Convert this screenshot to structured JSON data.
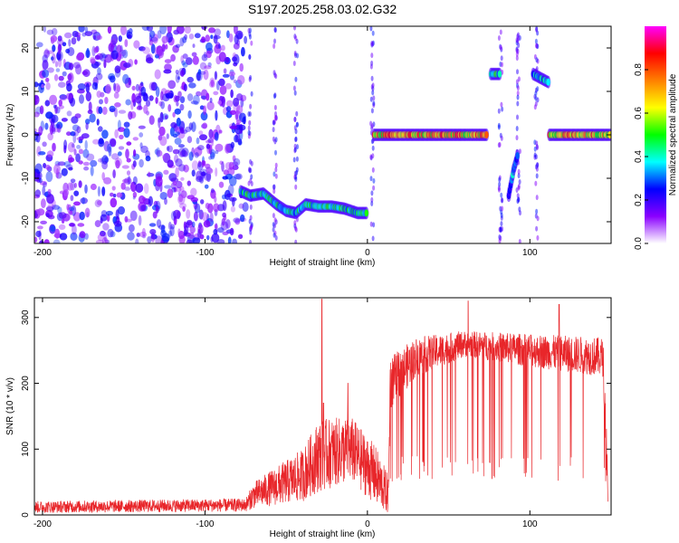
{
  "title": "S197.2025.258.03.02.G32",
  "chart_data": [
    {
      "type": "heatmap",
      "xlabel": "Height of straight line (km)",
      "ylabel": "Frequency (Hz)",
      "xlim": [
        -205,
        150
      ],
      "ylim": [
        -25,
        25
      ],
      "xticks": [
        -200,
        -100,
        0,
        100
      ],
      "yticks": [
        -20,
        -10,
        0,
        10,
        20
      ],
      "colorbar": {
        "label": "Normalized spectral amplitude",
        "range": [
          0,
          1
        ],
        "ticks": [
          "0.0",
          "0.2",
          "0.4",
          "0.6",
          "0.8"
        ],
        "colors": [
          "#ffffff",
          "#8a00ff",
          "#0000ff",
          "#00ffff",
          "#00ff00",
          "#ffff00",
          "#ff8000",
          "#ff0000",
          "#ff00ff"
        ]
      },
      "noise_region": {
        "x": [
          -205,
          -75
        ],
        "y": [
          -25,
          25
        ],
        "level": 0.2
      },
      "tracks": [
        {
          "x": [
            -78,
            -72,
            -64,
            -56,
            -50,
            -44,
            -38,
            -30,
            -22,
            -14,
            -6,
            0
          ],
          "y": [
            -13,
            -14,
            -13.5,
            -16,
            -17.5,
            -18,
            -16,
            -16.5,
            -16.5,
            -17,
            -18,
            -18
          ],
          "amplitude": 0.5
        },
        {
          "x": [
            4,
            20,
            40,
            60,
            74
          ],
          "y": [
            0,
            0,
            0,
            0,
            0
          ],
          "amplitude": 0.85
        },
        {
          "x": [
            76,
            82
          ],
          "y": [
            14,
            14
          ],
          "amplitude": 0.5
        },
        {
          "x": [
            102,
            112
          ],
          "y": [
            14,
            12
          ],
          "amplitude": 0.45
        },
        {
          "x": [
            112,
            125,
            140,
            150
          ],
          "y": [
            0,
            0,
            0,
            0
          ],
          "amplitude": 0.85
        },
        {
          "x": [
            87,
            90,
            93
          ],
          "y": [
            -14,
            -8,
            -4
          ],
          "amplitude": 0.4
        }
      ]
    },
    {
      "type": "line",
      "xlabel": "Height of straight line (km)",
      "ylabel": "SNR (10 * v/v)",
      "xlim": [
        -205,
        150
      ],
      "ylim": [
        0,
        330
      ],
      "xticks": [
        -200,
        -100,
        0,
        100
      ],
      "yticks": [
        0,
        100,
        200,
        300
      ],
      "series": [
        {
          "color": "#e8262a",
          "envelope": [
            {
              "x": -205,
              "base": 12,
              "spread": 18
            },
            {
              "x": -75,
              "base": 15,
              "spread": 20
            },
            {
              "x": -70,
              "base": 30,
              "spread": 40
            },
            {
              "x": -40,
              "base": 60,
              "spread": 80
            },
            {
              "x": -30,
              "base": 90,
              "spread": 110
            },
            {
              "x": -10,
              "base": 100,
              "spread": 100
            },
            {
              "x": 5,
              "base": 60,
              "spread": 90
            },
            {
              "x": 13,
              "base": 30,
              "spread": 60
            },
            {
              "x": 14,
              "base": 200,
              "spread": 80
            },
            {
              "x": 30,
              "base": 240,
              "spread": 60
            },
            {
              "x": 60,
              "base": 260,
              "spread": 40
            },
            {
              "x": 100,
              "base": 250,
              "spread": 50
            },
            {
              "x": 145,
              "base": 240,
              "spread": 60
            },
            {
              "x": 148,
              "base": 50,
              "spread": 100
            }
          ],
          "spikes": [
            {
              "x": -28,
              "y": 328
            },
            {
              "x": -27,
              "y": 170
            },
            {
              "x": -12,
              "y": 200
            },
            {
              "x": 62,
              "y": 325
            },
            {
              "x": 118,
              "y": 320
            }
          ]
        }
      ]
    }
  ]
}
